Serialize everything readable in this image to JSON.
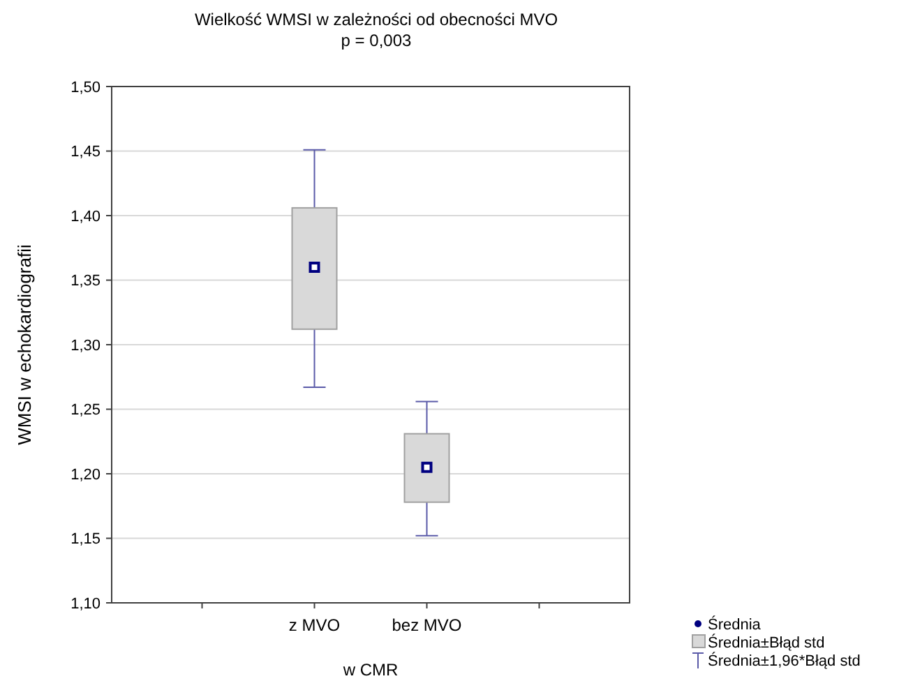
{
  "chart_data": {
    "type": "box",
    "title": "Wielkość WMSI w zależności od obecności MVO",
    "subtitle": "p = 0,003",
    "xlabel": "w CMR",
    "ylabel": "WMSI w echokardiografii",
    "categories": [
      "z MVO",
      "bez MVO"
    ],
    "series": [
      {
        "color": "#d9d9d9",
        "boxes": [
          {
            "low": 1.267,
            "q1": 1.312,
            "q3": 1.406,
            "high": 1.451,
            "mean": 1.36
          },
          {
            "low": 1.152,
            "q1": 1.178,
            "q3": 1.231,
            "high": 1.256,
            "mean": 1.205
          }
        ]
      }
    ],
    "ylim": [
      1.1,
      1.5
    ],
    "yticks": [
      {
        "value": 1.1,
        "label": "1,10"
      },
      {
        "value": 1.15,
        "label": "1,15"
      },
      {
        "value": 1.2,
        "label": "1,20"
      },
      {
        "value": 1.25,
        "label": "1,25"
      },
      {
        "value": 1.3,
        "label": "1,30"
      },
      {
        "value": 1.35,
        "label": "1,35"
      },
      {
        "value": 1.4,
        "label": "1,40"
      },
      {
        "value": 1.45,
        "label": "1,45"
      },
      {
        "value": 1.5,
        "label": "1,50"
      }
    ],
    "grid": "y",
    "annotations": [
      "Średnia",
      "Średnia±Błąd std",
      "Średnia±1,96*Błąd std"
    ]
  }
}
